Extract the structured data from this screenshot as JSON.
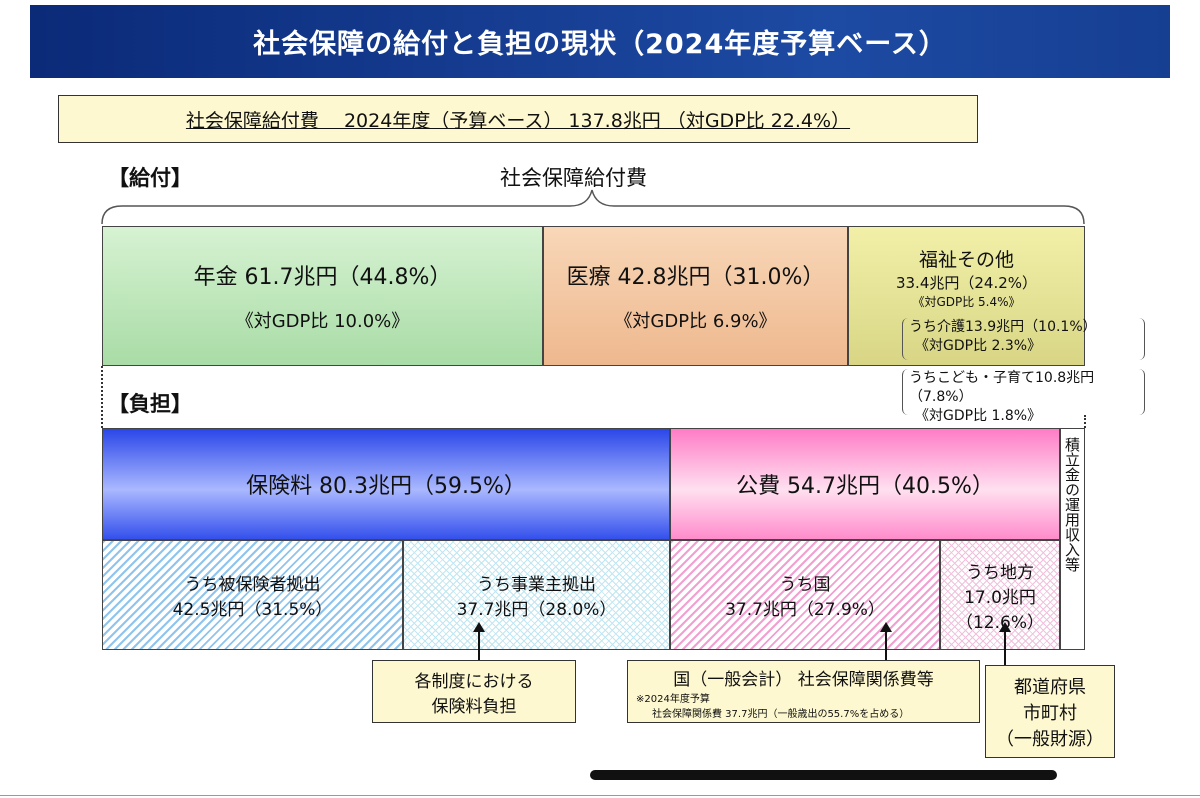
{
  "title": "社会保障の給付と負担の現状（2024年度予算ベース）",
  "summary": "社会保障給付費　 2024年度（予算ベース） 137.8兆円 （対GDP比 22.4%）",
  "benefit": {
    "heading": "【給付】",
    "brace_label": "社会保障給付費",
    "pension": {
      "line1": "年金 61.7兆円（44.8%）",
      "line2": "《対GDP比 10.0%》"
    },
    "medical": {
      "line1": "医療 42.8兆円（31.0%）",
      "line2": "《対GDP比 6.9%》"
    },
    "welfare": {
      "line1": "福祉その他",
      "line2": "33.4兆円（24.2%）",
      "line3": "《対GDP比 5.4%》"
    },
    "care": {
      "line1": "うち介護13.9兆円（10.1%）",
      "line2": "《対GDP比 2.3%》"
    },
    "children": {
      "line1": "うちこども・子育て10.8兆円（7.8%）",
      "line2": "《対GDP比 1.8%》"
    }
  },
  "burden": {
    "heading": "【負担】",
    "insurance": "保険料 80.3兆円（59.5%）",
    "public": "公費 54.7兆円（40.5%）",
    "reserve": "積立金の運用収入等",
    "insured": {
      "line1": "うち被保険者拠出",
      "line2": "42.5兆円（31.5%）"
    },
    "employer": {
      "line1": "うち事業主拠出",
      "line2": "37.7兆円（28.0%）"
    },
    "national": {
      "line1": "うち国",
      "line2": "37.7兆円（27.9%）"
    },
    "local": {
      "line1": "うち地方",
      "line2": "17.0兆円",
      "line3": "（12.6%）"
    }
  },
  "callouts": {
    "insurance": {
      "line1": "各制度における",
      "line2": "保険料負担"
    },
    "national": {
      "line1": "国（一般会計） 社会保障関係費等",
      "note1": "※2024年度予算",
      "note2": "社会保障関係費 37.7兆円（一般歳出の55.7%を占める）"
    },
    "local": {
      "line1": "都道府県",
      "line2": "市町村",
      "line3": "（一般財源）"
    }
  }
}
